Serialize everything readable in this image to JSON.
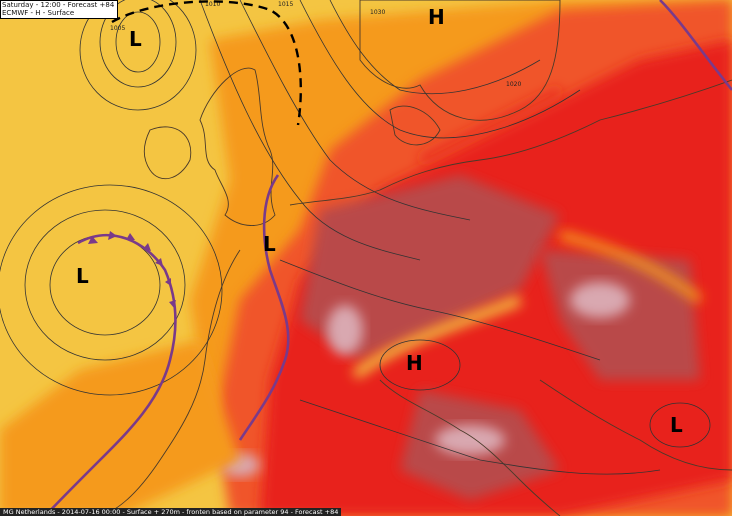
{
  "header": {
    "line1": "Saturday - 12:00 - Forecast +84",
    "line2": "ECMWF - H - Surface"
  },
  "footer": {
    "text": "MG Netherlands - 2014-07-16 00:00 - Surface + 270m - fronten based on parameter 94 - Forecast +84"
  },
  "pressure_systems": [
    {
      "label": "L",
      "name": "low-iceland"
    },
    {
      "label": "L",
      "name": "low-atlantic"
    },
    {
      "label": "L",
      "name": "low-north-sea"
    },
    {
      "label": "H",
      "name": "high-scandinavia"
    },
    {
      "label": "H",
      "name": "high-alps"
    },
    {
      "label": "L",
      "name": "low-balkans"
    }
  ],
  "isobar_labels": [
    "1005",
    "1010",
    "1015",
    "1020",
    "1030"
  ],
  "colors": {
    "cool": "#f4c542",
    "mild": "#f59a1c",
    "warm": "#f0552a",
    "hot": "#e8211b",
    "very_hot": "#b94a48",
    "extreme": "#d9a8b0",
    "cold_front": "#7a3a8a",
    "trough": "#000000"
  }
}
